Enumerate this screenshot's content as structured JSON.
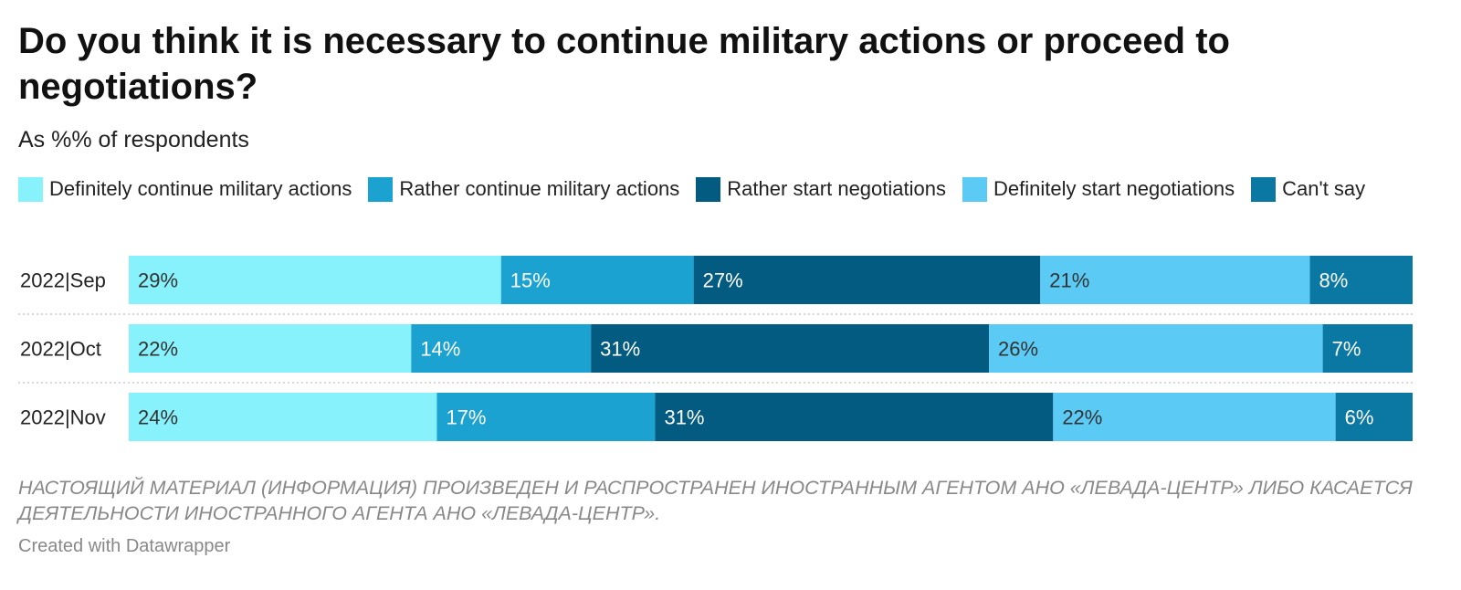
{
  "title": "Do you think it is necessary to continue military actions or proceed to negotiations?",
  "subtitle": "As %% of respondents",
  "legend": [
    {
      "label": "Definitely continue military actions",
      "color": "#88f2fc"
    },
    {
      "label": "Rather continue military actions",
      "color": "#1ba2d0"
    },
    {
      "label": "Rather start negotiations",
      "color": "#045b82"
    },
    {
      "label": "Definitely start negotiations",
      "color": "#5bcbf6"
    },
    {
      "label": "Can't say",
      "color": "#0b78a4"
    }
  ],
  "chart_data": {
    "type": "bar",
    "orientation": "horizontal",
    "stacked": true,
    "categories": [
      "2022|Sep",
      "2022|Oct",
      "2022|Nov"
    ],
    "series": [
      {
        "name": "Definitely continue military actions",
        "color": "#88f2fc",
        "label_color": "#333333",
        "values": [
          29,
          22,
          24
        ],
        "labels": [
          "29%",
          "22%",
          "24%"
        ]
      },
      {
        "name": "Rather continue military actions",
        "color": "#1ba2d0",
        "label_color": "#ffffff",
        "values": [
          15,
          14,
          17
        ],
        "labels": [
          "15%",
          "14%",
          "17%"
        ]
      },
      {
        "name": "Rather start negotiations",
        "color": "#045b82",
        "label_color": "#ffffff",
        "values": [
          27,
          31,
          31
        ],
        "labels": [
          "27%",
          "31%",
          "31%"
        ]
      },
      {
        "name": "Definitely start negotiations",
        "color": "#5bcbf6",
        "label_color": "#333333",
        "values": [
          21,
          26,
          22
        ],
        "labels": [
          "21%",
          "26%",
          "22%"
        ]
      },
      {
        "name": "Can't say",
        "color": "#0b78a4",
        "label_color": "#ffffff",
        "values": [
          8,
          7,
          6
        ],
        "labels": [
          "8%",
          "7%",
          "6%"
        ]
      }
    ],
    "grid": false,
    "legend_position": "top"
  },
  "footnote": "НАСТОЯЩИЙ МАТЕРИАЛ (ИНФОРМАЦИЯ) ПРОИЗВЕДЕН И РАСПРОСТРАНЕН ИНОСТРАННЫМ АГЕНТОМ АНО «ЛЕВАДА-ЦЕНТР» ЛИБО КАСАЕТСЯ ДЕЯТЕЛЬНОСТИ ИНОСТРАННОГО АГЕНТА АНО «ЛЕВАДА-ЦЕНТР».",
  "credit": "Created with Datawrapper"
}
